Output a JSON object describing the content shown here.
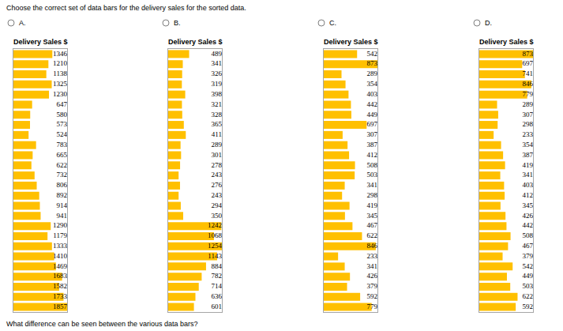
{
  "instruction": "Choose the correct set of data bars for the delivery sales for the sorted data.",
  "question": "What difference can be seen between the various data bars?",
  "chart_data": [
    {
      "type": "bar",
      "orientation": "horizontal",
      "annotations": [
        "A."
      ],
      "title": "Delivery Sales $",
      "categories": [
        null,
        null,
        null,
        null,
        null,
        null,
        null,
        null,
        null,
        null,
        null,
        null,
        null,
        null,
        null,
        null,
        null,
        null,
        null,
        null,
        null,
        null,
        null,
        null,
        null,
        null
      ],
      "values": [
        1346,
        1210,
        1138,
        1325,
        1230,
        647,
        580,
        573,
        524,
        783,
        665,
        622,
        732,
        806,
        892,
        914,
        941,
        1290,
        1179,
        1333,
        1410,
        1469,
        1683,
        1582,
        1733,
        1857
      ],
      "color": "#ffc000",
      "xlim": [
        0,
        1857
      ],
      "xticks": [],
      "data_labels": true,
      "tick_labels": false
    },
    {
      "type": "bar",
      "orientation": "horizontal",
      "annotations": [
        "B."
      ],
      "title": "Delivery Sales $",
      "categories": [
        null,
        null,
        null,
        null,
        null,
        null,
        null,
        null,
        null,
        null,
        null,
        null,
        null,
        null,
        null,
        null,
        null,
        null,
        null,
        null,
        null,
        null,
        null,
        null,
        null,
        null
      ],
      "values": [
        489,
        341,
        326,
        319,
        398,
        321,
        328,
        365,
        411,
        289,
        301,
        278,
        243,
        276,
        243,
        294,
        350,
        1242,
        1068,
        1254,
        1143,
        884,
        782,
        714,
        636,
        601
      ],
      "color": "#ffc000",
      "xlim": [
        0,
        1254
      ],
      "xticks": [],
      "data_labels": true,
      "tick_labels": false
    },
    {
      "type": "bar",
      "orientation": "horizontal",
      "annotations": [
        "C."
      ],
      "title": "Delivery Sales $",
      "categories": [
        null,
        null,
        null,
        null,
        null,
        null,
        null,
        null,
        null,
        null,
        null,
        null,
        null,
        null,
        null,
        null,
        null,
        null,
        null,
        null,
        null,
        null,
        null,
        null,
        null,
        null
      ],
      "values": [
        542,
        873,
        289,
        354,
        403,
        442,
        449,
        697,
        307,
        387,
        412,
        508,
        503,
        341,
        298,
        419,
        345,
        467,
        622,
        846,
        233,
        341,
        426,
        379,
        592,
        779
      ],
      "color": "#ffc000",
      "xlim": [
        0,
        873
      ],
      "xticks": [],
      "data_labels": true,
      "tick_labels": false
    },
    {
      "type": "bar",
      "orientation": "horizontal",
      "annotations": [
        "D."
      ],
      "title": "Delivery Sales $",
      "categories": [
        null,
        null,
        null,
        null,
        null,
        null,
        null,
        null,
        null,
        null,
        null,
        null,
        null,
        null,
        null,
        null,
        null,
        null,
        null,
        null,
        null,
        null,
        null,
        null,
        null,
        null
      ],
      "values": [
        873,
        697,
        741,
        846,
        779,
        289,
        307,
        298,
        233,
        354,
        387,
        419,
        341,
        403,
        412,
        345,
        426,
        442,
        508,
        467,
        379,
        542,
        449,
        503,
        622,
        592
      ],
      "color": "#ffc000",
      "xlim": [
        0,
        873
      ],
      "xticks": [],
      "data_labels": true,
      "tick_labels": false
    }
  ]
}
